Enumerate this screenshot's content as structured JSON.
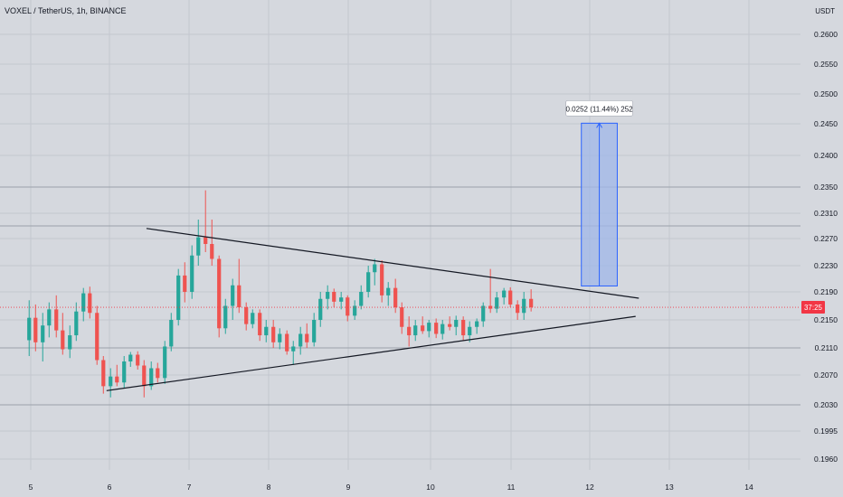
{
  "header": {
    "symbol_line": "VOXEL / TetherUS, 1h, BINANCE",
    "currency": "USDT"
  },
  "colors": {
    "up": "#26a69a",
    "down": "#ef5350",
    "background": "#d5d8de",
    "grid": "#c3c7cf",
    "trendline": "#131722",
    "measure_fill": "#9fb7e8",
    "measure_stroke": "#2962ff",
    "current_price": "#f23645"
  },
  "chart_data": {
    "type": "candlestick",
    "y_ticks": [
      "0.2600",
      "0.2550",
      "0.2500",
      "0.2450",
      "0.2400",
      "0.2350",
      "0.2310",
      "0.2270",
      "0.2230",
      "0.2190",
      "0.2150",
      "0.2110",
      "0.2070",
      "0.2030",
      "0.1995",
      "0.1960"
    ],
    "x_ticks": [
      "5",
      "6",
      "7",
      "8",
      "9",
      "10",
      "11",
      "12",
      "13",
      "14"
    ],
    "horizontal_levels": [
      0.235,
      0.229,
      0.211,
      0.203
    ],
    "current_price_badge": "37:25",
    "trendlines": [
      {
        "name": "upper",
        "from": {
          "day": 6.45,
          "price": 0.2286
        },
        "to": {
          "day": 12.62,
          "price": 0.2181
        }
      },
      {
        "name": "lower",
        "from": {
          "day": 5.95,
          "price": 0.2049
        },
        "to": {
          "day": 12.58,
          "price": 0.2155
        }
      }
    ],
    "measure": {
      "label": "0.0252 (11.44%) 252",
      "day_from": 11.9,
      "day_to": 12.35,
      "price_from": 0.2199,
      "price_to": 0.2451
    },
    "candles": [
      [
        4.98,
        0.2121,
        0.2178,
        0.2098,
        0.2153
      ],
      [
        5.06,
        0.2153,
        0.2172,
        0.2105,
        0.2118
      ],
      [
        5.15,
        0.2118,
        0.216,
        0.209,
        0.2142
      ],
      [
        5.23,
        0.2142,
        0.2175,
        0.2125,
        0.2165
      ],
      [
        5.32,
        0.2165,
        0.2185,
        0.2125,
        0.2135
      ],
      [
        5.4,
        0.2135,
        0.216,
        0.21,
        0.2108
      ],
      [
        5.49,
        0.2108,
        0.2142,
        0.2095,
        0.2128
      ],
      [
        5.57,
        0.2128,
        0.2175,
        0.212,
        0.2162
      ],
      [
        5.66,
        0.2162,
        0.2196,
        0.2148,
        0.2188
      ],
      [
        5.74,
        0.2188,
        0.2198,
        0.2152,
        0.216
      ],
      [
        5.83,
        0.216,
        0.217,
        0.2085,
        0.2092
      ],
      [
        5.91,
        0.2092,
        0.2098,
        0.2045,
        0.2055
      ],
      [
        6.0,
        0.2055,
        0.208,
        0.204,
        0.2068
      ],
      [
        6.08,
        0.2068,
        0.2085,
        0.2055,
        0.206
      ],
      [
        6.17,
        0.206,
        0.2098,
        0.2052,
        0.209
      ],
      [
        6.25,
        0.209,
        0.2104,
        0.2082,
        0.21
      ],
      [
        6.34,
        0.21,
        0.2105,
        0.2078,
        0.2084
      ],
      [
        6.42,
        0.2084,
        0.2092,
        0.204,
        0.2055
      ],
      [
        6.51,
        0.2055,
        0.209,
        0.205,
        0.208
      ],
      [
        6.59,
        0.208,
        0.2088,
        0.206,
        0.2066
      ],
      [
        6.68,
        0.2066,
        0.212,
        0.2058,
        0.2112
      ],
      [
        6.76,
        0.2112,
        0.216,
        0.2105,
        0.215
      ],
      [
        6.85,
        0.215,
        0.2225,
        0.2142,
        0.2215
      ],
      [
        6.93,
        0.2215,
        0.2235,
        0.2175,
        0.219
      ],
      [
        7.02,
        0.219,
        0.226,
        0.218,
        0.2245
      ],
      [
        7.1,
        0.2245,
        0.23,
        0.223,
        0.2272
      ],
      [
        7.19,
        0.2272,
        0.2345,
        0.225,
        0.2262
      ],
      [
        7.27,
        0.2262,
        0.23,
        0.223,
        0.224
      ],
      [
        7.36,
        0.224,
        0.2245,
        0.2125,
        0.2138
      ],
      [
        7.44,
        0.2138,
        0.218,
        0.213,
        0.217
      ],
      [
        7.53,
        0.217,
        0.221,
        0.215,
        0.22
      ],
      [
        7.61,
        0.22,
        0.224,
        0.216,
        0.2168
      ],
      [
        7.7,
        0.2168,
        0.2175,
        0.2135,
        0.2144
      ],
      [
        7.78,
        0.2144,
        0.2165,
        0.2138,
        0.216
      ],
      [
        7.87,
        0.216,
        0.2165,
        0.212,
        0.2128
      ],
      [
        7.95,
        0.2128,
        0.215,
        0.2118,
        0.214
      ],
      [
        8.04,
        0.214,
        0.215,
        0.211,
        0.2118
      ],
      [
        8.12,
        0.2118,
        0.2138,
        0.2108,
        0.213
      ],
      [
        8.21,
        0.213,
        0.2135,
        0.21,
        0.2105
      ],
      [
        8.29,
        0.2105,
        0.212,
        0.2085,
        0.2112
      ],
      [
        8.38,
        0.2112,
        0.214,
        0.21,
        0.213
      ],
      [
        8.46,
        0.213,
        0.2145,
        0.211,
        0.2118
      ],
      [
        8.55,
        0.2118,
        0.216,
        0.2112,
        0.215
      ],
      [
        8.63,
        0.215,
        0.219,
        0.214,
        0.218
      ],
      [
        8.72,
        0.218,
        0.22,
        0.2165,
        0.219
      ],
      [
        8.8,
        0.219,
        0.2195,
        0.2168,
        0.2176
      ],
      [
        8.89,
        0.2176,
        0.219,
        0.2165,
        0.2182
      ],
      [
        8.97,
        0.2182,
        0.2185,
        0.2148,
        0.2156
      ],
      [
        9.06,
        0.2156,
        0.2178,
        0.215,
        0.217
      ],
      [
        9.14,
        0.217,
        0.22,
        0.2165,
        0.219
      ],
      [
        9.23,
        0.219,
        0.223,
        0.2182,
        0.222
      ],
      [
        9.31,
        0.222,
        0.224,
        0.22,
        0.2232
      ],
      [
        9.4,
        0.2232,
        0.2238,
        0.2175,
        0.2185
      ],
      [
        9.48,
        0.2185,
        0.2205,
        0.217,
        0.2196
      ],
      [
        9.57,
        0.2196,
        0.221,
        0.216,
        0.2168
      ],
      [
        9.65,
        0.2168,
        0.2175,
        0.213,
        0.214
      ],
      [
        9.74,
        0.214,
        0.2155,
        0.2112,
        0.2128
      ],
      [
        9.82,
        0.2128,
        0.215,
        0.212,
        0.2142
      ],
      [
        9.91,
        0.2142,
        0.2155,
        0.213,
        0.2134
      ],
      [
        9.99,
        0.2134,
        0.215,
        0.2125,
        0.2146
      ],
      [
        10.08,
        0.2146,
        0.2152,
        0.2124,
        0.213
      ],
      [
        10.16,
        0.213,
        0.215,
        0.2122,
        0.2144
      ],
      [
        10.25,
        0.2144,
        0.2155,
        0.2135,
        0.214
      ],
      [
        10.33,
        0.214,
        0.2156,
        0.2128,
        0.215
      ],
      [
        10.42,
        0.215,
        0.2155,
        0.212,
        0.2128
      ],
      [
        10.5,
        0.2128,
        0.2148,
        0.2118,
        0.214
      ],
      [
        10.59,
        0.214,
        0.2152,
        0.213,
        0.2148
      ],
      [
        10.67,
        0.2148,
        0.2175,
        0.214,
        0.217
      ],
      [
        10.76,
        0.217,
        0.2225,
        0.216,
        0.2166
      ],
      [
        10.84,
        0.2166,
        0.219,
        0.216,
        0.2182
      ],
      [
        10.93,
        0.2182,
        0.2196,
        0.2172,
        0.2192
      ],
      [
        11.01,
        0.2192,
        0.2197,
        0.2168,
        0.2172
      ],
      [
        11.1,
        0.2172,
        0.2178,
        0.215,
        0.216
      ],
      [
        11.18,
        0.216,
        0.219,
        0.215,
        0.218
      ],
      [
        11.27,
        0.218,
        0.2194,
        0.2162,
        0.2168
      ]
    ]
  }
}
